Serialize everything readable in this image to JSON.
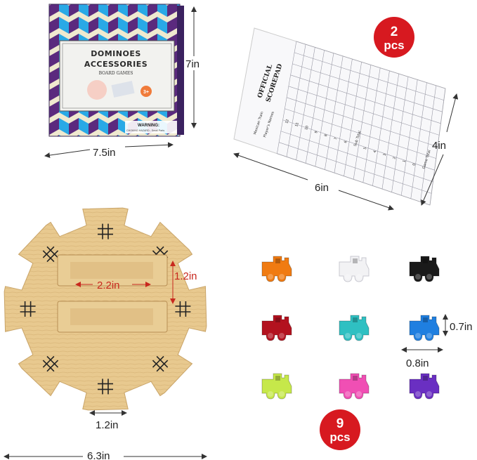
{
  "box": {
    "title_line1": "DOMINOES",
    "title_line2": "ACCESSORIES",
    "subtitle": "BOARD GAMES",
    "age_badge": "3+",
    "warning": "WARNING:",
    "warning_detail": "CHOKING HAZARD - Small Parts",
    "colors": {
      "blue": "#29a9e6",
      "purple": "#5b2a7e",
      "cream": "#efe9cf"
    }
  },
  "scorepad": {
    "title_line1": "OFFICIAL",
    "title_line2": "SCOREPAD",
    "brand": "Mexican Train",
    "players_label": "Player's Names",
    "rows": [
      "12",
      "11",
      "10",
      "9",
      "8",
      "7",
      "6",
      "Sub Total",
      "5",
      "4",
      "3",
      "2",
      "1",
      "0",
      "Game Total"
    ]
  },
  "badges": {
    "scorepad_count_num": "2",
    "scorepad_count_unit": "pcs",
    "trains_count_num": "9",
    "trains_count_unit": "pcs",
    "color": "#d71920"
  },
  "dimensions": {
    "box_height": "7in",
    "box_width": "7.5in",
    "pad_width": "6in",
    "pad_height": "4in",
    "slot_length": "2.2in",
    "slot_width": "1.2in",
    "notch_width": "1.2in",
    "hub_diameter": "6.3in",
    "train_height": "0.7in",
    "train_width": "0.8in"
  },
  "trains": [
    {
      "color": "#f07b12"
    },
    {
      "color": "#f2f2f4"
    },
    {
      "color": "#1a1a1a"
    },
    {
      "color": "#b3121f"
    },
    {
      "color": "#2fc0c2"
    },
    {
      "color": "#1f7fe0"
    },
    {
      "color": "#c6e84a"
    },
    {
      "color": "#f04fb4"
    },
    {
      "color": "#6a2fc2"
    }
  ],
  "hub": {
    "wood": "#e8c98f",
    "wood_dark": "#d6b072"
  }
}
